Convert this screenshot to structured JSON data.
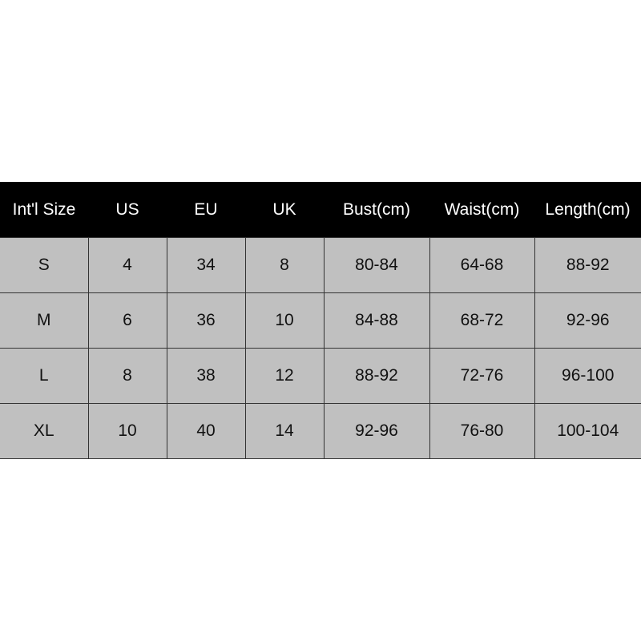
{
  "table": {
    "headers": [
      "Int'l Size",
      "US",
      "EU",
      "UK",
      "Bust(cm)",
      "Waist(cm)",
      "Length(cm)"
    ],
    "rows": [
      [
        "S",
        "4",
        "34",
        "8",
        "80-84",
        "64-68",
        "88-92"
      ],
      [
        "M",
        "6",
        "36",
        "10",
        "84-88",
        "68-72",
        "92-96"
      ],
      [
        "L",
        "8",
        "38",
        "12",
        "88-92",
        "72-76",
        "96-100"
      ],
      [
        "XL",
        "10",
        "40",
        "14",
        "92-96",
        "76-80",
        "100-104"
      ]
    ]
  },
  "colors": {
    "header_bg": "#000000",
    "header_text": "#ffffff",
    "cell_bg": "#c0c0c0"
  }
}
